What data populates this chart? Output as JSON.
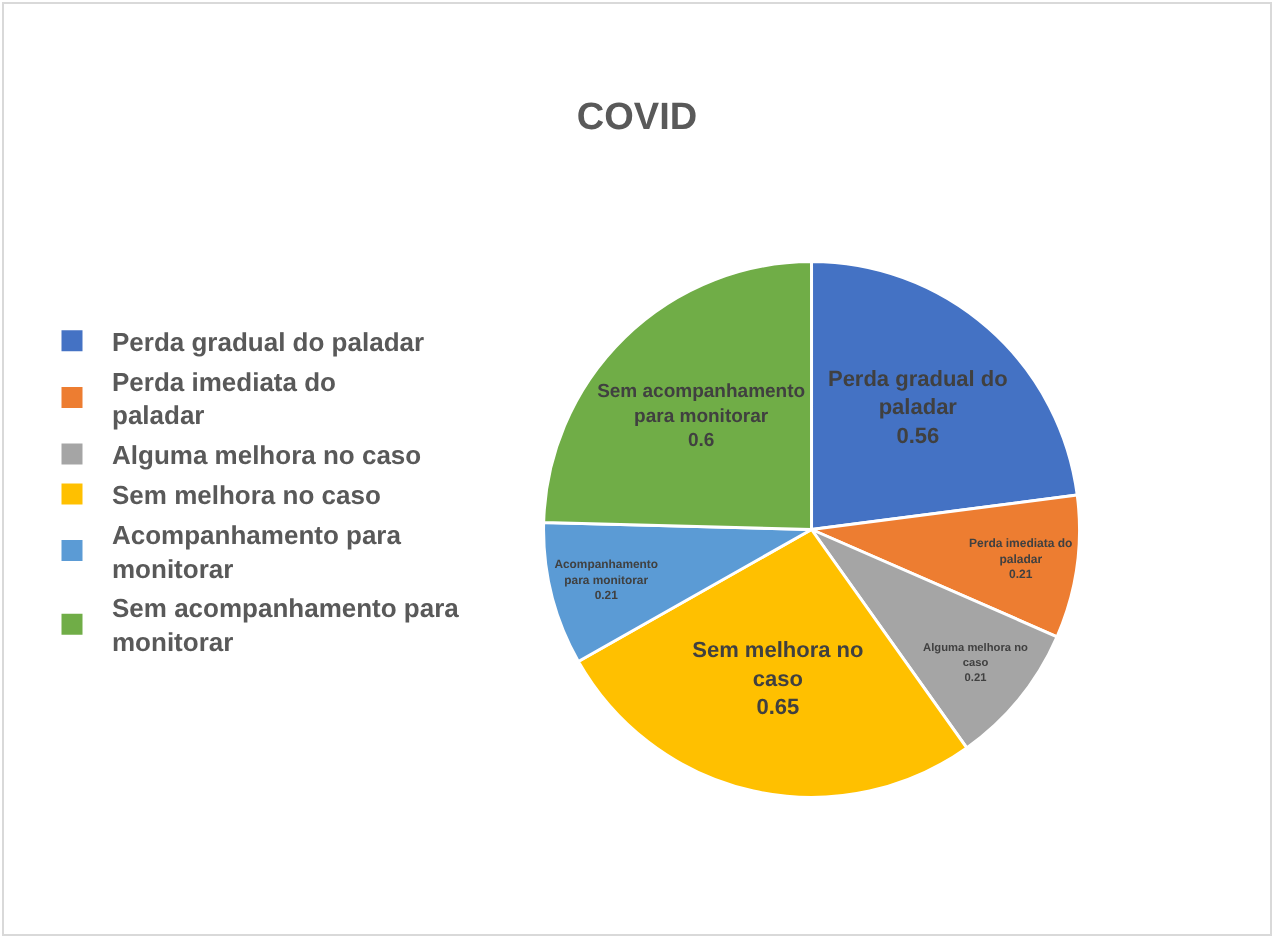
{
  "chart_data": {
    "type": "pie",
    "title": "COVID",
    "categories": [
      "Perda gradual do paladar",
      "Perda imediata do paladar",
      "Alguma melhora no caso",
      "Sem melhora no caso",
      "Acompanhamento para monitorar",
      "Sem acompanhamento para monitorar"
    ],
    "values": [
      0.56,
      0.21,
      0.21,
      0.65,
      0.21,
      0.6
    ],
    "colors": [
      "#4472c4",
      "#ed7d31",
      "#a5a5a5",
      "#ffc000",
      "#5b9bd5",
      "#70ad47"
    ],
    "data_labels": true,
    "legend": "left"
  }
}
